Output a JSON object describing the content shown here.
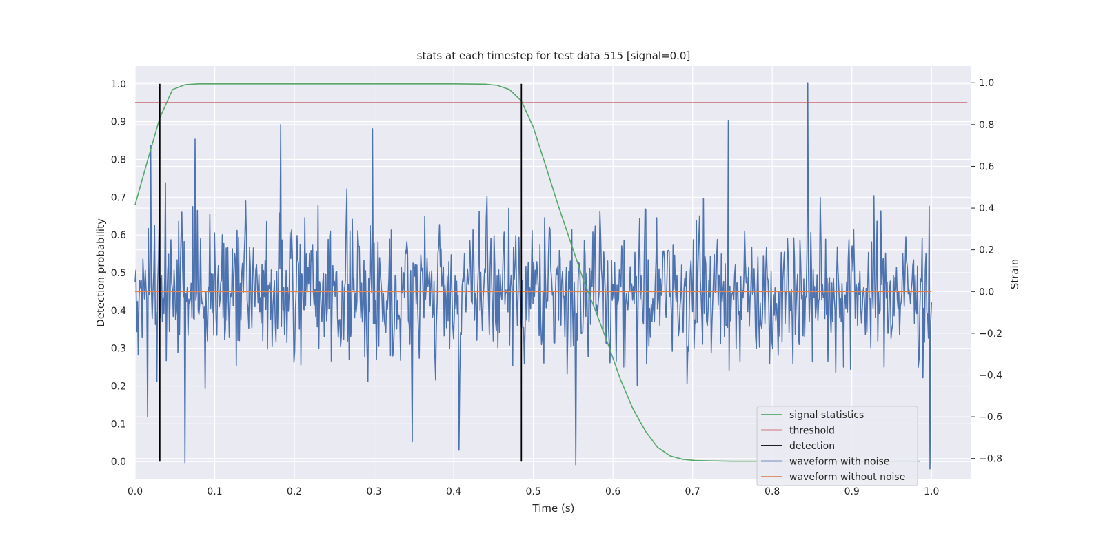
{
  "chart_data": {
    "type": "line",
    "title": "stats at each timestep for test data 515 [signal=0.0]",
    "xlabel": "Time (s)",
    "ylabel": "Detection probability",
    "ylabel_right": "Strain",
    "xlim": [
      0.0,
      1.05
    ],
    "ylim": [
      -0.047,
      1.047
    ],
    "ylim_right": [
      -0.9,
      1.08
    ],
    "x_ticks": [
      "0.0",
      "0.1",
      "0.2",
      "0.3",
      "0.4",
      "0.5",
      "0.6",
      "0.7",
      "0.8",
      "0.9",
      "1.0"
    ],
    "y_ticks": [
      "0.0",
      "0.1",
      "0.2",
      "0.3",
      "0.4",
      "0.5",
      "0.6",
      "0.7",
      "0.8",
      "0.9",
      "1.0"
    ],
    "y_ticks_right": [
      "−0.8",
      "−0.6",
      "−0.4",
      "−0.2",
      "0.0",
      "0.2",
      "0.4",
      "0.6",
      "0.8",
      "1.0"
    ],
    "grid": true,
    "legend_position": "lower-right",
    "legend": [
      "signal statistics",
      "threshold",
      "detection",
      "waveform with noise",
      "waveform without noise"
    ],
    "series": [
      {
        "name": "signal statistics",
        "axis": "left",
        "color": "#55a868",
        "x": [
          0.0,
          0.016,
          0.031,
          0.047,
          0.063,
          0.08,
          0.1,
          0.2,
          0.3,
          0.4,
          0.44,
          0.455,
          0.47,
          0.485,
          0.5,
          0.516,
          0.531,
          0.547,
          0.563,
          0.578,
          0.594,
          0.609,
          0.625,
          0.641,
          0.656,
          0.672,
          0.688,
          0.703,
          0.72,
          0.75,
          0.8,
          0.9,
          0.985
        ],
        "y": [
          0.68,
          0.8,
          0.91,
          0.985,
          0.998,
          1.0,
          1.0,
          1.0,
          1.0,
          1.0,
          0.999,
          0.996,
          0.985,
          0.955,
          0.885,
          0.78,
          0.68,
          0.58,
          0.48,
          0.4,
          0.31,
          0.22,
          0.14,
          0.08,
          0.038,
          0.015,
          0.006,
          0.003,
          0.002,
          0.001,
          0.001,
          0.001,
          0.001
        ]
      },
      {
        "name": "threshold",
        "axis": "left",
        "color": "#c44e52",
        "x": [
          0.0,
          1.045
        ],
        "y": [
          0.95,
          0.95
        ]
      },
      {
        "name": "detection",
        "axis": "left",
        "color": "#000000",
        "x": [
          0.031,
          0.485
        ],
        "y": [
          0.0,
          1.0
        ]
      },
      {
        "name": "waveform with noise",
        "axis": "right",
        "color": "#4c72b0",
        "x_start": 0.0,
        "x_end": 1.0,
        "n_points": 1024,
        "y_range": [
          -0.85,
          1.0
        ],
        "y_peaks": [
          {
            "x": 0.016,
            "y": -0.6
          },
          {
            "x": 0.02,
            "y": 0.7
          },
          {
            "x": 0.063,
            "y": -0.82
          },
          {
            "x": 0.075,
            "y": 0.73
          },
          {
            "x": 0.183,
            "y": 0.8
          },
          {
            "x": 0.298,
            "y": 0.78
          },
          {
            "x": 0.348,
            "y": -0.72
          },
          {
            "x": 0.407,
            "y": -0.76
          },
          {
            "x": 0.553,
            "y": -0.83
          },
          {
            "x": 0.745,
            "y": 0.82
          },
          {
            "x": 0.845,
            "y": 1.0
          },
          {
            "x": 0.998,
            "y": -0.85
          }
        ]
      },
      {
        "name": "waveform without noise",
        "axis": "right",
        "color": "#dd8452",
        "x": [
          0.0,
          1.0
        ],
        "y": [
          0.0,
          0.0
        ]
      }
    ]
  }
}
